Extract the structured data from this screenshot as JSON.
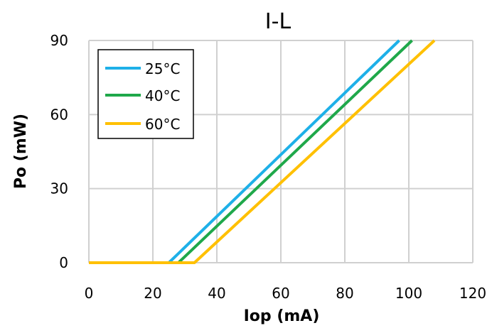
{
  "chart_data": {
    "type": "line",
    "title": "I-L",
    "xlabel": "Iop (mA)",
    "ylabel": "Po (mW)",
    "xlim": [
      0,
      120
    ],
    "ylim": [
      0,
      90
    ],
    "x_ticks": [
      "0",
      "20",
      "40",
      "60",
      "80",
      "100",
      "120"
    ],
    "y_ticks": [
      "0",
      "30",
      "60",
      "90"
    ],
    "grid": true,
    "legend_position": "top-left",
    "series": [
      {
        "name": "25°C",
        "color": "#1EB0E8",
        "points": [
          [
            0,
            0
          ],
          [
            25,
            0
          ],
          [
            97,
            90
          ]
        ]
      },
      {
        "name": "40°C",
        "color": "#1FA84A",
        "points": [
          [
            0,
            0
          ],
          [
            28,
            0
          ],
          [
            101,
            90
          ]
        ]
      },
      {
        "name": "60°C",
        "color": "#FFC000",
        "points": [
          [
            0,
            0
          ],
          [
            33,
            0
          ],
          [
            108,
            90
          ]
        ]
      }
    ]
  }
}
